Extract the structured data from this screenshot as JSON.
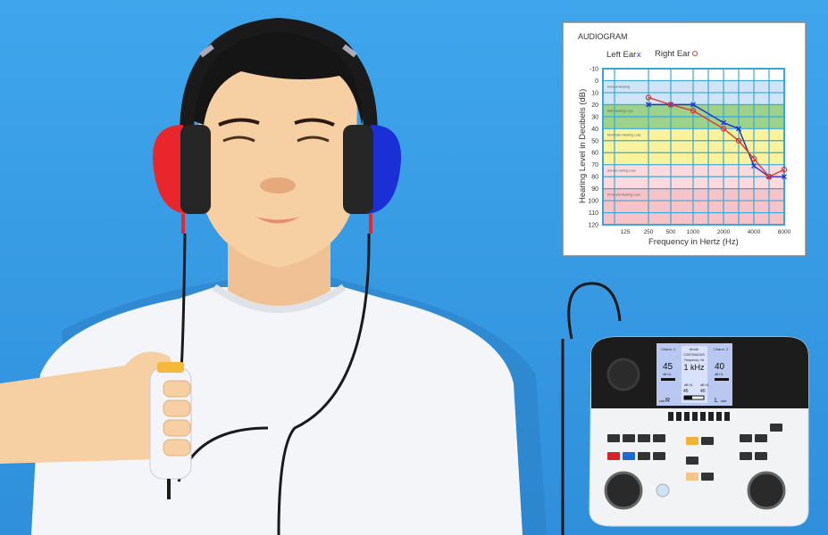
{
  "colors": {
    "background": "#3a9fe6",
    "shirt": "#f4f6f8",
    "skin": "#f6cfa2",
    "hair": "#151515",
    "left_cup": "#e8262b",
    "right_cup": "#1b2fd6",
    "left_ear_series": "#1f2fd0",
    "right_ear_series": "#e0362b",
    "grid": "#38a8dc"
  },
  "chart_data": {
    "type": "line",
    "title": "AUDIOGRAM",
    "xlabel": "Frequency in Hertz (Hz)",
    "ylabel": "Hearing Level in Decibels (dB)",
    "x_tick_labels": [
      "125",
      "250",
      "500",
      "1000",
      "2000",
      "4000",
      "8000"
    ],
    "y_tick_labels": [
      "-10",
      "0",
      "10",
      "20",
      "30",
      "40",
      "50",
      "60",
      "70",
      "80",
      "90",
      "100",
      "110",
      "120"
    ],
    "ylim": [
      -10,
      120
    ],
    "y_inverted": true,
    "x_scale": "log (octave)",
    "grid": true,
    "legend": {
      "placement": "top",
      "entries": [
        {
          "label": "Left Ear",
          "marker": "x"
        },
        {
          "label": "Right Ear",
          "marker": "o"
        }
      ]
    },
    "bands": [
      {
        "label": "Normal Hearing",
        "from": 0,
        "to": 20,
        "color": "#cfe5f7"
      },
      {
        "label": "Mild Hearing Loss",
        "from": 20,
        "to": 40,
        "color": "#9dd28b"
      },
      {
        "label": "Moderate Hearing Loss",
        "from": 40,
        "to": 70,
        "color": "#f8f39c"
      },
      {
        "label": "Severe Hering Loss",
        "from": 70,
        "to": 90,
        "color": "#fcdadd"
      },
      {
        "label": "Profound Hearing Loss",
        "from": 90,
        "to": 120,
        "color": "#f6c3c9"
      }
    ],
    "series": [
      {
        "name": "Left Ear",
        "marker": "x",
        "x": [
          250,
          500,
          1000,
          2000,
          3000,
          4000,
          6000,
          8000
        ],
        "values": [
          20,
          20,
          20,
          35,
          40,
          71,
          80,
          80
        ]
      },
      {
        "name": "Right Ear",
        "marker": "o",
        "x": [
          250,
          500,
          1000,
          2000,
          3000,
          4000,
          6000,
          8000
        ],
        "values": [
          14,
          20,
          25,
          40,
          50,
          65,
          80,
          74
        ]
      }
    ]
  },
  "audiometer": {
    "channel1": {
      "label": "Chann. 1",
      "value": "45",
      "unit": "dB HL",
      "side_label": "side",
      "side": "R"
    },
    "channel2": {
      "label": "Chann. 2",
      "value": "40",
      "unit": "dB HL",
      "side_label": "side",
      "side": "L"
    },
    "mode_label": "Mode",
    "mode": "CONTINUOUS",
    "frequency_label": "Frequency, Hz",
    "frequency": "1 kHz",
    "sub1": {
      "unit": "dB HL",
      "value": "45"
    },
    "sub2": {
      "unit": "dB HL",
      "value": "40"
    }
  }
}
